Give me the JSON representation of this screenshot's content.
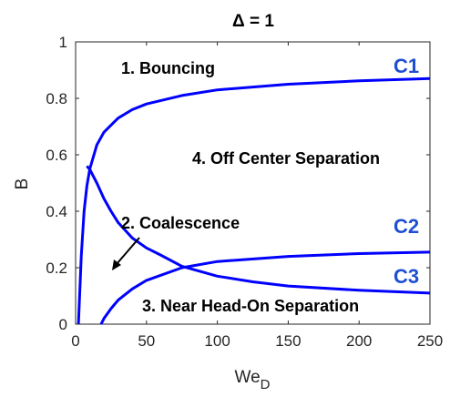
{
  "chart_data": {
    "type": "line",
    "title": "Δ = 1",
    "xlabel": "We",
    "xlabel_subscript": "D",
    "ylabel": "B",
    "xlim": [
      0,
      250
    ],
    "ylim": [
      0,
      1
    ],
    "xticks": [
      0,
      50,
      100,
      150,
      200,
      250
    ],
    "yticks": [
      0,
      0.2,
      0.4,
      0.6,
      0.8,
      1
    ],
    "xtick_labels": [
      "0",
      "50",
      "100",
      "150",
      "200",
      "250"
    ],
    "ytick_labels": [
      "0",
      "0.2",
      "0.4",
      "0.6",
      "0.8",
      "1"
    ],
    "grid": false,
    "line_color": "#0000ff",
    "label_color": "#1f4fd1",
    "series": [
      {
        "name": "C1",
        "x": [
          2,
          4,
          6,
          8,
          10,
          15,
          20,
          30,
          40,
          50,
          75,
          100,
          150,
          200,
          250
        ],
        "y": [
          0.0,
          0.24,
          0.4,
          0.49,
          0.55,
          0.635,
          0.68,
          0.73,
          0.76,
          0.78,
          0.81,
          0.83,
          0.85,
          0.862,
          0.87
        ]
      },
      {
        "name": "C2",
        "x": [
          8,
          10,
          15,
          20,
          25,
          30,
          40,
          50,
          60,
          75,
          100,
          125,
          150,
          200,
          250
        ],
        "y": [
          0.56,
          0.548,
          0.5,
          0.445,
          0.4,
          0.36,
          0.305,
          0.27,
          0.245,
          0.205,
          0.17,
          0.15,
          0.135,
          0.12,
          0.11
        ]
      },
      {
        "name": "C3",
        "x": [
          18,
          20,
          25,
          30,
          40,
          50,
          75,
          100,
          150,
          200,
          250
        ],
        "y": [
          0.0,
          0.02,
          0.055,
          0.085,
          0.125,
          0.155,
          0.2,
          0.222,
          0.24,
          0.25,
          0.255
        ]
      }
    ],
    "regions": [
      "1. Bouncing",
      "2. Coalescence",
      "3. Near Head-On Separation",
      "4. Off Center Separation"
    ]
  }
}
